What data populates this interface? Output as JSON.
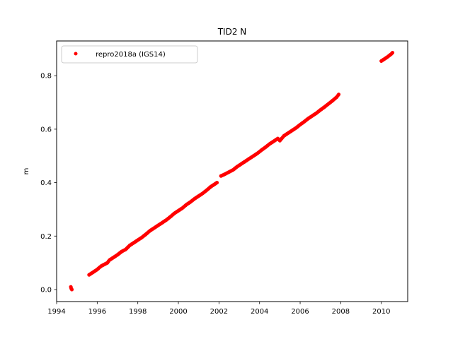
{
  "chart_data": {
    "type": "scatter",
    "title": "TID2 N",
    "xlabel": "",
    "ylabel": "m",
    "xlim": [
      1994,
      2011.3
    ],
    "ylim": [
      -0.045,
      0.93
    ],
    "xticks": [
      1994,
      1996,
      1998,
      2000,
      2002,
      2004,
      2006,
      2008,
      2010
    ],
    "xtick_labels": [
      "1994",
      "1996",
      "1998",
      "2000",
      "2002",
      "2004",
      "2006",
      "2008",
      "2010"
    ],
    "yticks": [
      0.0,
      0.2,
      0.4,
      0.6,
      0.8
    ],
    "ytick_labels": [
      "0.0",
      "0.2",
      "0.4",
      "0.6",
      "0.8"
    ],
    "grid": false,
    "legend": {
      "position": "top-left",
      "entries": [
        "repro2018a (IGS14)"
      ]
    },
    "series": [
      {
        "name": "repro2018a (IGS14)",
        "color": "#ff0000",
        "marker": "circle",
        "x": [
          1994.7,
          1994.72,
          1994.75,
          1995.6,
          1995.7,
          1995.8,
          1995.9,
          1996.0,
          1996.1,
          1996.2,
          1996.5,
          1996.6,
          1996.8,
          1997.0,
          1997.2,
          1997.4,
          1997.6,
          1997.8,
          1998.0,
          1998.2,
          1998.4,
          1998.6,
          1998.8,
          1999.0,
          1999.2,
          1999.4,
          1999.6,
          1999.8,
          2000.0,
          2000.2,
          2000.4,
          2000.6,
          2000.8,
          2001.0,
          2001.2,
          2001.4,
          2001.6,
          2001.8,
          2001.9,
          2002.1,
          2002.3,
          2002.5,
          2002.7,
          2002.9,
          2003.1,
          2003.3,
          2003.5,
          2003.7,
          2003.9,
          2004.1,
          2004.3,
          2004.5,
          2004.7,
          2004.9,
          2005.0,
          2005.2,
          2005.4,
          2005.6,
          2005.8,
          2006.0,
          2006.2,
          2006.4,
          2006.6,
          2006.8,
          2007.0,
          2007.2,
          2007.4,
          2007.6,
          2007.8,
          2007.9,
          2010.0,
          2010.1,
          2010.2,
          2010.3,
          2010.4,
          2010.5,
          2010.55
        ],
        "y": [
          0.01,
          0.004,
          0.0,
          0.055,
          0.06,
          0.065,
          0.07,
          0.075,
          0.082,
          0.088,
          0.1,
          0.11,
          0.12,
          0.13,
          0.142,
          0.15,
          0.165,
          0.175,
          0.185,
          0.195,
          0.207,
          0.22,
          0.23,
          0.24,
          0.25,
          0.26,
          0.272,
          0.285,
          0.295,
          0.305,
          0.318,
          0.328,
          0.34,
          0.35,
          0.36,
          0.372,
          0.385,
          0.395,
          0.4,
          0.425,
          0.432,
          0.44,
          0.448,
          0.46,
          0.47,
          0.48,
          0.49,
          0.5,
          0.51,
          0.522,
          0.533,
          0.545,
          0.555,
          0.565,
          0.557,
          0.575,
          0.585,
          0.595,
          0.605,
          0.617,
          0.628,
          0.64,
          0.65,
          0.66,
          0.672,
          0.683,
          0.695,
          0.707,
          0.72,
          0.73,
          0.855,
          0.86,
          0.865,
          0.87,
          0.876,
          0.882,
          0.886
        ]
      }
    ]
  }
}
